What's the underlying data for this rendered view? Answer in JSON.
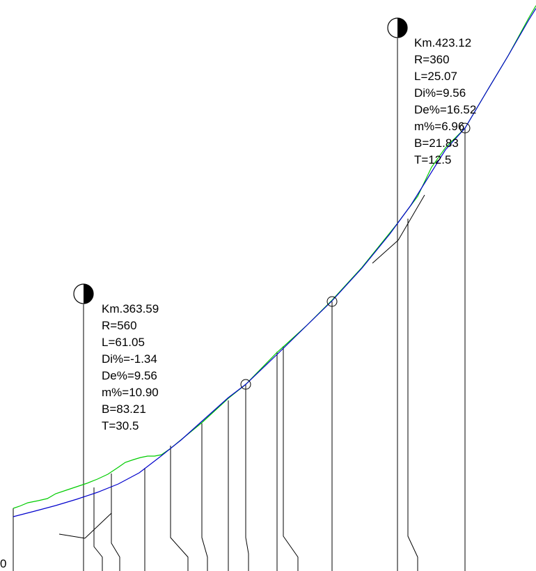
{
  "colors": {
    "background": "#ffffff",
    "design_grade_line": "#0000cc",
    "ground_line": "#00cc00",
    "ink": "#000000"
  },
  "axis": {
    "origin_label": "0"
  },
  "curves": [
    {
      "marker_icon": "half-filled-circle-icon",
      "km": "Km.363.59",
      "r": "R=560",
      "l": "L=61.05",
      "di": "Di%=-1.34",
      "de": "De%=9.56",
      "m": "m%=10.90",
      "b": "B=83.21",
      "t": "T=30.5"
    },
    {
      "marker_icon": "half-filled-circle-icon",
      "km": "Km.423.12",
      "r": "R=360",
      "l": "L=25.07",
      "di": "Di%=9.56",
      "de": "De%=16.52",
      "m": "m%=6.96",
      "b": "B=21.83",
      "t": "T=12.5"
    }
  ]
}
